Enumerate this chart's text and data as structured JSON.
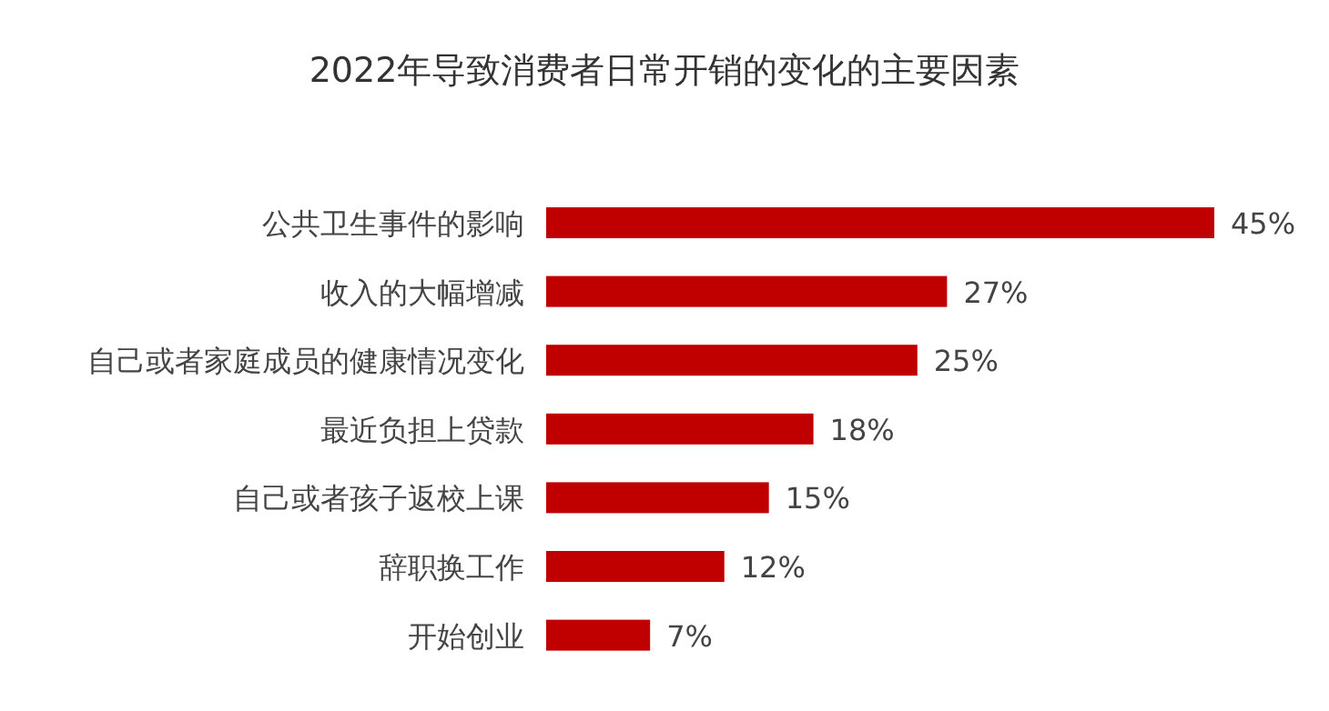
{
  "chart_data": {
    "type": "bar",
    "orientation": "horizontal",
    "title": "2022年导致消费者日常开销的变化的主要因素",
    "categories": [
      "公共卫生事件的影响",
      "收入的大幅增减",
      "自己或者家庭成员的健康情况变化",
      "最近负担上贷款",
      "自己或者孩子返校上课",
      "辞职换工作",
      "开始创业"
    ],
    "values": [
      45,
      27,
      25,
      18,
      15,
      12,
      7
    ],
    "value_labels": [
      "45%",
      "27%",
      "25%",
      "18%",
      "15%",
      "12%",
      "7%"
    ],
    "color": "#c00000"
  }
}
